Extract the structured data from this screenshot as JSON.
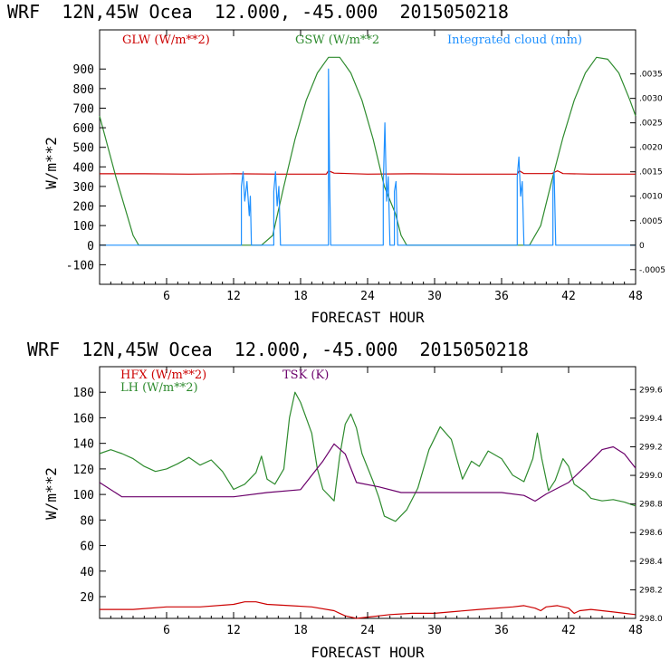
{
  "chart_data": [
    {
      "type": "line",
      "header": "WRF  12N,45W Ocea  12.000, -45.000  2015050218",
      "xlabel": "FORECAST HOUR",
      "ylabel": "W/m**2",
      "xlim": [
        0,
        48
      ],
      "ylim": [
        -200,
        1100
      ],
      "xticks": [
        6,
        12,
        18,
        24,
        30,
        36,
        42,
        48
      ],
      "yticks": [
        -100,
        0,
        100,
        200,
        300,
        400,
        500,
        600,
        700,
        800,
        900
      ],
      "right_ticks": [
        {
          "label": ".0035",
          "value": 0.0035
        },
        {
          "label": ".0030",
          "value": 0.003
        },
        {
          "label": ".0025",
          "value": 0.0025
        },
        {
          "label": ".0020",
          "value": 0.002
        },
        {
          "label": ".0015",
          "value": 0.0015
        },
        {
          "label": ".0010",
          "value": 0.001
        },
        {
          "label": ".0005",
          "value": 0.0005
        },
        {
          "label": "0",
          "value": 0
        },
        {
          "label": "-.0005",
          "value": -0.0005
        }
      ],
      "right_ylim": [
        -0.0008,
        0.0044
      ],
      "series": [
        {
          "name": "GLW (W/m**2)",
          "color": "#cc0000",
          "points": [
            [
              0,
              365
            ],
            [
              4,
              365
            ],
            [
              8,
              363
            ],
            [
              12,
              365
            ],
            [
              16,
              363
            ],
            [
              20.3,
              363
            ],
            [
              20.5,
              380
            ],
            [
              21,
              368
            ],
            [
              24,
              363
            ],
            [
              28,
              365
            ],
            [
              32,
              363
            ],
            [
              36,
              363
            ],
            [
              37.4,
              363
            ],
            [
              37.6,
              380
            ],
            [
              38,
              366
            ],
            [
              40.5,
              366
            ],
            [
              41,
              380
            ],
            [
              41.5,
              366
            ],
            [
              44,
              363
            ],
            [
              48,
              363
            ]
          ]
        },
        {
          "name": "GSW (W/m**2",
          "color": "#2e8b2e",
          "points": [
            [
              0,
              660
            ],
            [
              1.5,
              340
            ],
            [
              3,
              50
            ],
            [
              3.5,
              0
            ],
            [
              14.5,
              0
            ],
            [
              15.5,
              50
            ],
            [
              16.5,
              300
            ],
            [
              17.5,
              540
            ],
            [
              18.5,
              740
            ],
            [
              19.5,
              880
            ],
            [
              20.5,
              960
            ],
            [
              21.5,
              960
            ],
            [
              22.5,
              880
            ],
            [
              23.5,
              740
            ],
            [
              24.5,
              540
            ],
            [
              25.5,
              300
            ],
            [
              26,
              230
            ],
            [
              26.5,
              160
            ],
            [
              27,
              50
            ],
            [
              27.5,
              0
            ],
            [
              38.5,
              0
            ],
            [
              39.5,
              100
            ],
            [
              40.5,
              330
            ],
            [
              41.5,
              550
            ],
            [
              42.5,
              740
            ],
            [
              43.5,
              880
            ],
            [
              44.5,
              960
            ],
            [
              45.5,
              950
            ],
            [
              46.5,
              880
            ],
            [
              47.5,
              740
            ],
            [
              48,
              660
            ]
          ]
        },
        {
          "name": "Integrated cloud (mm)",
          "color": "#1e90ff",
          "points": [
            [
              0,
              0
            ],
            [
              12.7,
              0
            ],
            [
              12.7,
              0.0012
            ],
            [
              12.85,
              0.0015
            ],
            [
              13.0,
              0.0009
            ],
            [
              13.2,
              0.0013
            ],
            [
              13.4,
              0.0006
            ],
            [
              13.5,
              0.001
            ],
            [
              13.6,
              0
            ],
            [
              15.6,
              0
            ],
            [
              15.6,
              0.0011
            ],
            [
              15.75,
              0.0015
            ],
            [
              15.9,
              0.0008
            ],
            [
              16.05,
              0.0012
            ],
            [
              16.2,
              0
            ],
            [
              20.5,
              0
            ],
            [
              20.5,
              0.0036
            ],
            [
              20.6,
              0.0013
            ],
            [
              20.7,
              0
            ],
            [
              25.4,
              0
            ],
            [
              25.4,
              0.0012
            ],
            [
              25.55,
              0.0025
            ],
            [
              25.7,
              0.0009
            ],
            [
              25.85,
              0.0014
            ],
            [
              26.0,
              0
            ],
            [
              26.4,
              0
            ],
            [
              26.4,
              0.0011
            ],
            [
              26.55,
              0.0013
            ],
            [
              26.7,
              0
            ],
            [
              37.4,
              0
            ],
            [
              37.4,
              0.0014
            ],
            [
              37.55,
              0.0018
            ],
            [
              37.7,
              0.001
            ],
            [
              37.85,
              0.0013
            ],
            [
              38.0,
              0
            ],
            [
              40.6,
              0
            ],
            [
              40.6,
              0.0012
            ],
            [
              40.7,
              0.0015
            ],
            [
              40.85,
              0
            ],
            [
              48,
              0
            ]
          ]
        }
      ]
    },
    {
      "type": "line",
      "header": "WRF  12N,45W Ocea  12.000, -45.000  2015050218",
      "xlabel": "FORECAST HOUR",
      "ylabel": "W/m**2",
      "xlim": [
        0,
        48
      ],
      "ylim": [
        3,
        200
      ],
      "xticks": [
        6,
        12,
        18,
        24,
        30,
        36,
        42,
        48
      ],
      "yticks": [
        20,
        40,
        60,
        80,
        100,
        120,
        140,
        160,
        180
      ],
      "right_ticks": [
        {
          "label": "299.6",
          "value": 299.6
        },
        {
          "label": "299.4",
          "value": 299.4
        },
        {
          "label": "299.2",
          "value": 299.2
        },
        {
          "label": "299.0",
          "value": 299.0
        },
        {
          "label": "298.8",
          "value": 298.8
        },
        {
          "label": "298.6",
          "value": 298.6
        },
        {
          "label": "298.4",
          "value": 298.4
        },
        {
          "label": "298.2",
          "value": 298.2
        },
        {
          "label": "298.0",
          "value": 298.0
        }
      ],
      "right_ylim": [
        298.0,
        299.76
      ],
      "series": [
        {
          "name": "HFX (W/m**2)",
          "color": "#cc0000",
          "points": [
            [
              0,
              10
            ],
            [
              3,
              10
            ],
            [
              6,
              12
            ],
            [
              9,
              12
            ],
            [
              12,
              14
            ],
            [
              13,
              16
            ],
            [
              14,
              16
            ],
            [
              15,
              14
            ],
            [
              17,
              13
            ],
            [
              19,
              12
            ],
            [
              21,
              9
            ],
            [
              21.5,
              7
            ],
            [
              22,
              5
            ],
            [
              23,
              3
            ],
            [
              24,
              4
            ],
            [
              26,
              6
            ],
            [
              28,
              7
            ],
            [
              30,
              7
            ],
            [
              34,
              10
            ],
            [
              37,
              12
            ],
            [
              38,
              13
            ],
            [
              39,
              11
            ],
            [
              39.5,
              9
            ],
            [
              40,
              12
            ],
            [
              41,
              13
            ],
            [
              42,
              11
            ],
            [
              42.5,
              7
            ],
            [
              43,
              9
            ],
            [
              44,
              10
            ],
            [
              46,
              8
            ],
            [
              47,
              7
            ],
            [
              48,
              6
            ]
          ]
        },
        {
          "name": "LH  (W/m**2)",
          "color": "#2e8b2e",
          "points": [
            [
              0,
              132
            ],
            [
              1,
              135
            ],
            [
              2,
              132
            ],
            [
              3,
              128
            ],
            [
              4,
              122
            ],
            [
              5,
              118
            ],
            [
              6,
              120
            ],
            [
              7,
              124
            ],
            [
              8,
              129
            ],
            [
              9,
              123
            ],
            [
              10,
              127
            ],
            [
              11,
              118
            ],
            [
              12,
              104
            ],
            [
              13,
              108
            ],
            [
              14,
              117
            ],
            [
              14.5,
              130
            ],
            [
              15,
              112
            ],
            [
              15.7,
              108
            ],
            [
              16.5,
              120
            ],
            [
              17,
              160
            ],
            [
              17.5,
              180
            ],
            [
              18,
              172
            ],
            [
              19,
              148
            ],
            [
              19.5,
              120
            ],
            [
              20,
              104
            ],
            [
              21,
              95
            ],
            [
              21.5,
              130
            ],
            [
              22,
              155
            ],
            [
              22.5,
              163
            ],
            [
              23,
              152
            ],
            [
              23.5,
              132
            ],
            [
              24.5,
              110
            ],
            [
              25,
              98
            ],
            [
              25.5,
              83
            ],
            [
              26.5,
              79
            ],
            [
              27.5,
              88
            ],
            [
              28.5,
              105
            ],
            [
              29.5,
              135
            ],
            [
              30.5,
              153
            ],
            [
              31.5,
              143
            ],
            [
              32.5,
              112
            ],
            [
              33.3,
              126
            ],
            [
              34,
              122
            ],
            [
              34.8,
              134
            ],
            [
              36,
              128
            ],
            [
              37,
              115
            ],
            [
              38,
              110
            ],
            [
              38.8,
              128
            ],
            [
              39.2,
              148
            ],
            [
              39.6,
              128
            ],
            [
              40.2,
              103
            ],
            [
              40.8,
              111
            ],
            [
              41.5,
              128
            ],
            [
              42,
              122
            ],
            [
              42.5,
              108
            ],
            [
              43.5,
              102
            ],
            [
              44,
              97
            ],
            [
              45,
              95
            ],
            [
              46,
              96
            ],
            [
              47,
              94
            ],
            [
              48,
              91
            ]
          ]
        },
        {
          "name": "TSK (K)",
          "color": "#6b006b",
          "axis": "right",
          "points": [
            [
              0,
              298.95
            ],
            [
              2,
              298.85
            ],
            [
              6,
              298.85
            ],
            [
              12,
              298.85
            ],
            [
              15,
              298.88
            ],
            [
              18,
              298.9
            ],
            [
              19,
              299.0
            ],
            [
              20,
              299.1
            ],
            [
              21,
              299.22
            ],
            [
              22,
              299.15
            ],
            [
              23,
              298.95
            ],
            [
              25,
              298.92
            ],
            [
              27,
              298.88
            ],
            [
              30,
              298.88
            ],
            [
              33,
              298.88
            ],
            [
              36,
              298.88
            ],
            [
              38,
              298.86
            ],
            [
              39,
              298.82
            ],
            [
              40,
              298.87
            ],
            [
              42,
              298.95
            ],
            [
              44,
              299.1
            ],
            [
              45,
              299.18
            ],
            [
              46,
              299.2
            ],
            [
              47,
              299.15
            ],
            [
              48,
              299.05
            ]
          ]
        }
      ]
    }
  ]
}
